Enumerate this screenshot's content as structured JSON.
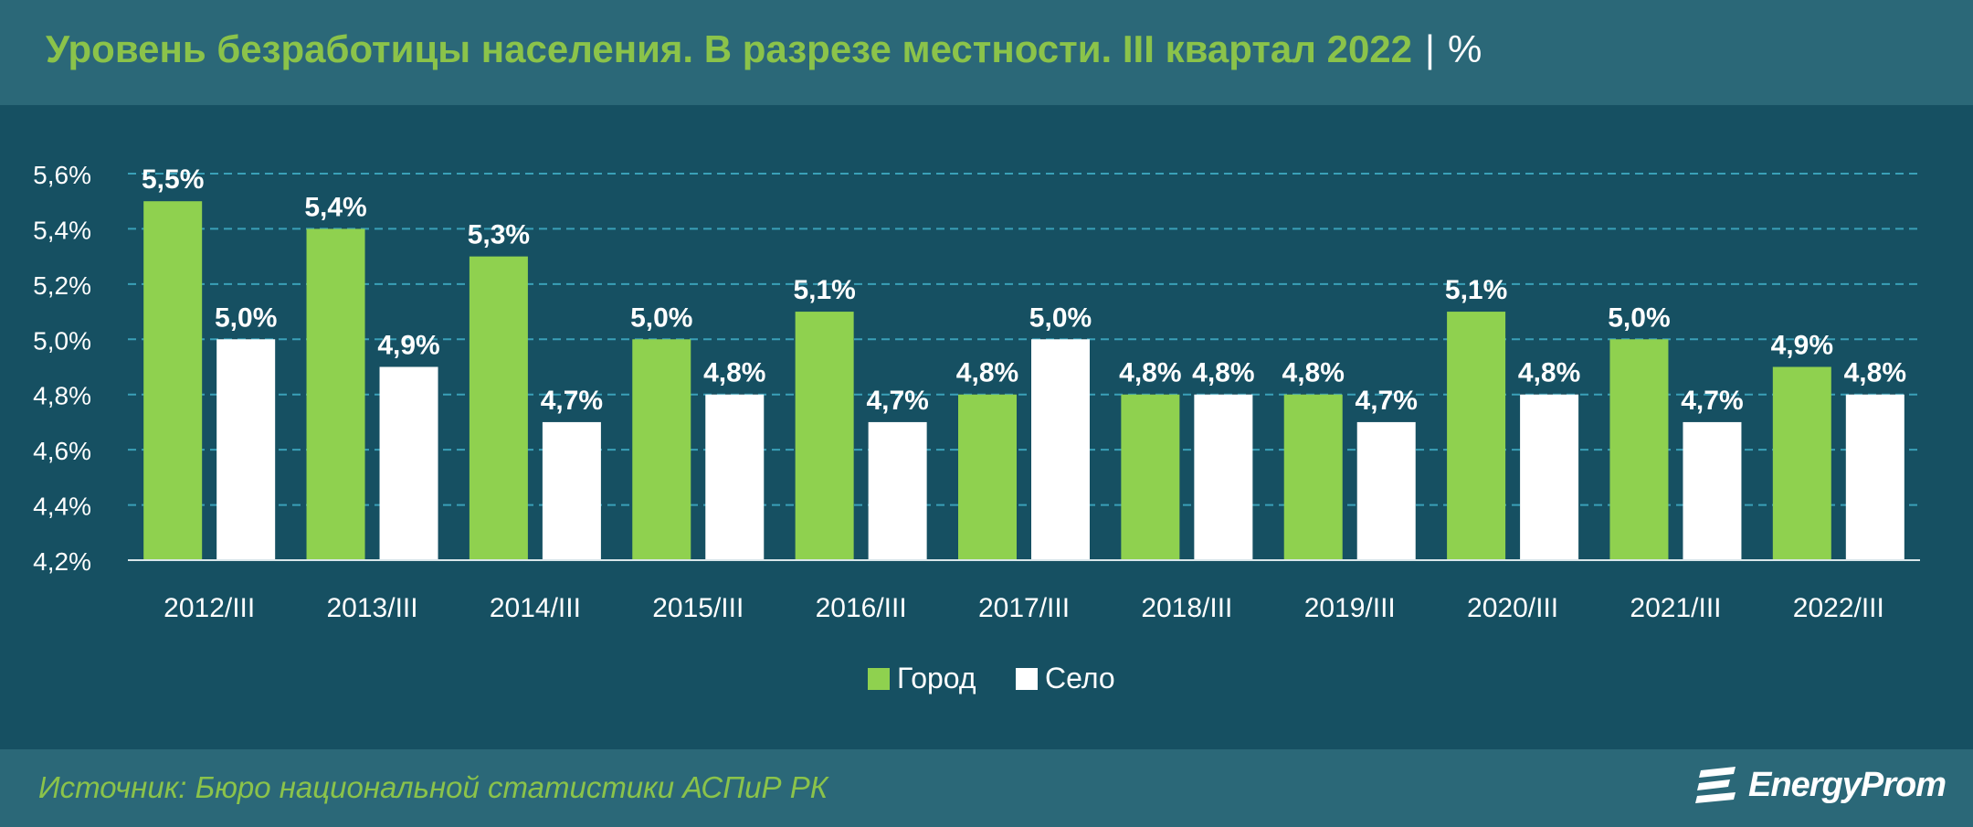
{
  "header": {
    "title": "Уровень безработицы населения. В разрезе местности. III квартал 2022",
    "separator": "|",
    "unit": "%"
  },
  "footer": {
    "source": "Источник: Бюро национальной статистики АСПиР РК",
    "logo_text": "EnergyProm"
  },
  "colors": {
    "background": "#1b4f5f",
    "panel": "#165062",
    "series_city": "#8fd14f",
    "series_village": "#ffffff",
    "accent_text": "#8bc34a",
    "grid": "#3aa0b8"
  },
  "chart_data": {
    "type": "bar",
    "title": "Уровень безработицы населения. В разрезе местности. III квартал 2022",
    "categories": [
      "2012/III",
      "2013/III",
      "2014/III",
      "2015/III",
      "2016/III",
      "2017/III",
      "2018/III",
      "2019/III",
      "2020/III",
      "2021/III",
      "2022/III"
    ],
    "series": [
      {
        "name": "Город",
        "values": [
          5.5,
          5.4,
          5.3,
          5.0,
          5.1,
          4.8,
          4.8,
          4.8,
          5.1,
          5.0,
          4.9
        ],
        "labels": [
          "5,5%",
          "5,4%",
          "5,3%",
          "5,0%",
          "5,1%",
          "4,8%",
          "4,8%",
          "4,8%",
          "5,1%",
          "5,0%",
          "4,9%"
        ]
      },
      {
        "name": "Село",
        "values": [
          5.0,
          4.9,
          4.7,
          4.8,
          4.7,
          5.0,
          4.8,
          4.7,
          4.8,
          4.7,
          4.8
        ],
        "labels": [
          "5,0%",
          "4,9%",
          "4,7%",
          "4,8%",
          "4,7%",
          "5,0%",
          "4,8%",
          "4,7%",
          "4,8%",
          "4,7%",
          "4,8%"
        ]
      }
    ],
    "yticks": [
      4.2,
      4.4,
      4.6,
      4.8,
      5.0,
      5.2,
      5.4,
      5.6
    ],
    "ytick_labels": [
      "4,2%",
      "4,4%",
      "4,6%",
      "4,8%",
      "5,0%",
      "5,2%",
      "5,4%",
      "5,6%"
    ],
    "ylim": [
      4.2,
      5.6
    ],
    "grid": true,
    "legend": "bottom-center",
    "xlabel": "",
    "ylabel": ""
  }
}
